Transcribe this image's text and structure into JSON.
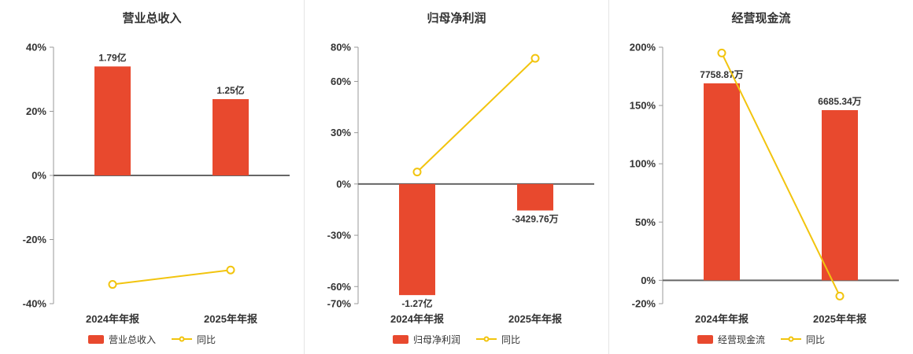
{
  "colors": {
    "bar": "#e8492e",
    "line": "#f2c40e",
    "axis": "#999999",
    "zero_line": "#666666",
    "text": "#333333",
    "divider": "#e4e4e4",
    "background": "#ffffff"
  },
  "chart_data": [
    {
      "type": "bar",
      "title": "营业总收入",
      "categories": [
        "2024年年报",
        "2025年年报"
      ],
      "bar_series": {
        "name": "营业总收入",
        "value_labels": [
          "1.79亿",
          "1.25亿"
        ],
        "plot_values_pct": [
          34,
          23.8
        ]
      },
      "line_series": {
        "name": "同比",
        "values_pct": [
          -34,
          -29.5
        ]
      },
      "yticks": [
        "40%",
        "20%",
        "0%",
        "-20%",
        "-40%"
      ],
      "ytick_values": [
        40,
        20,
        0,
        -20,
        -40
      ],
      "ylim": [
        -40,
        40
      ],
      "grid": false,
      "legend_position": "bottom",
      "legend": [
        "营业总收入",
        "同比"
      ]
    },
    {
      "type": "bar",
      "title": "归母净利润",
      "categories": [
        "2024年年报",
        "2025年年报"
      ],
      "bar_series": {
        "name": "归母净利润",
        "value_labels": [
          "-1.27亿",
          "-3429.76万"
        ],
        "plot_values_pct": [
          -65,
          -15.5
        ]
      },
      "line_series": {
        "name": "同比",
        "values_pct": [
          7,
          73.5
        ]
      },
      "yticks": [
        "80%",
        "60%",
        "30%",
        "0%",
        "-30%",
        "-60%",
        "-70%"
      ],
      "ytick_values": [
        80,
        60,
        30,
        0,
        -30,
        -60,
        -70
      ],
      "ylim": [
        -70,
        80
      ],
      "grid": false,
      "legend_position": "bottom",
      "legend": [
        "归母净利润",
        "同比"
      ]
    },
    {
      "type": "bar",
      "title": "经营现金流",
      "categories": [
        "2024年年报",
        "2025年年报"
      ],
      "bar_series": {
        "name": "经营现金流",
        "value_labels": [
          "7758.87万",
          "6685.34万"
        ],
        "plot_values_pct": [
          169,
          146
        ]
      },
      "line_series": {
        "name": "同比",
        "values_pct": [
          195,
          -13.5
        ]
      },
      "yticks": [
        "200%",
        "150%",
        "100%",
        "50%",
        "0%",
        "-20%"
      ],
      "ytick_values": [
        200,
        150,
        100,
        50,
        0,
        -20
      ],
      "ylim": [
        -20,
        200
      ],
      "grid": false,
      "legend_position": "bottom",
      "legend": [
        "经营现金流",
        "同比"
      ]
    }
  ]
}
